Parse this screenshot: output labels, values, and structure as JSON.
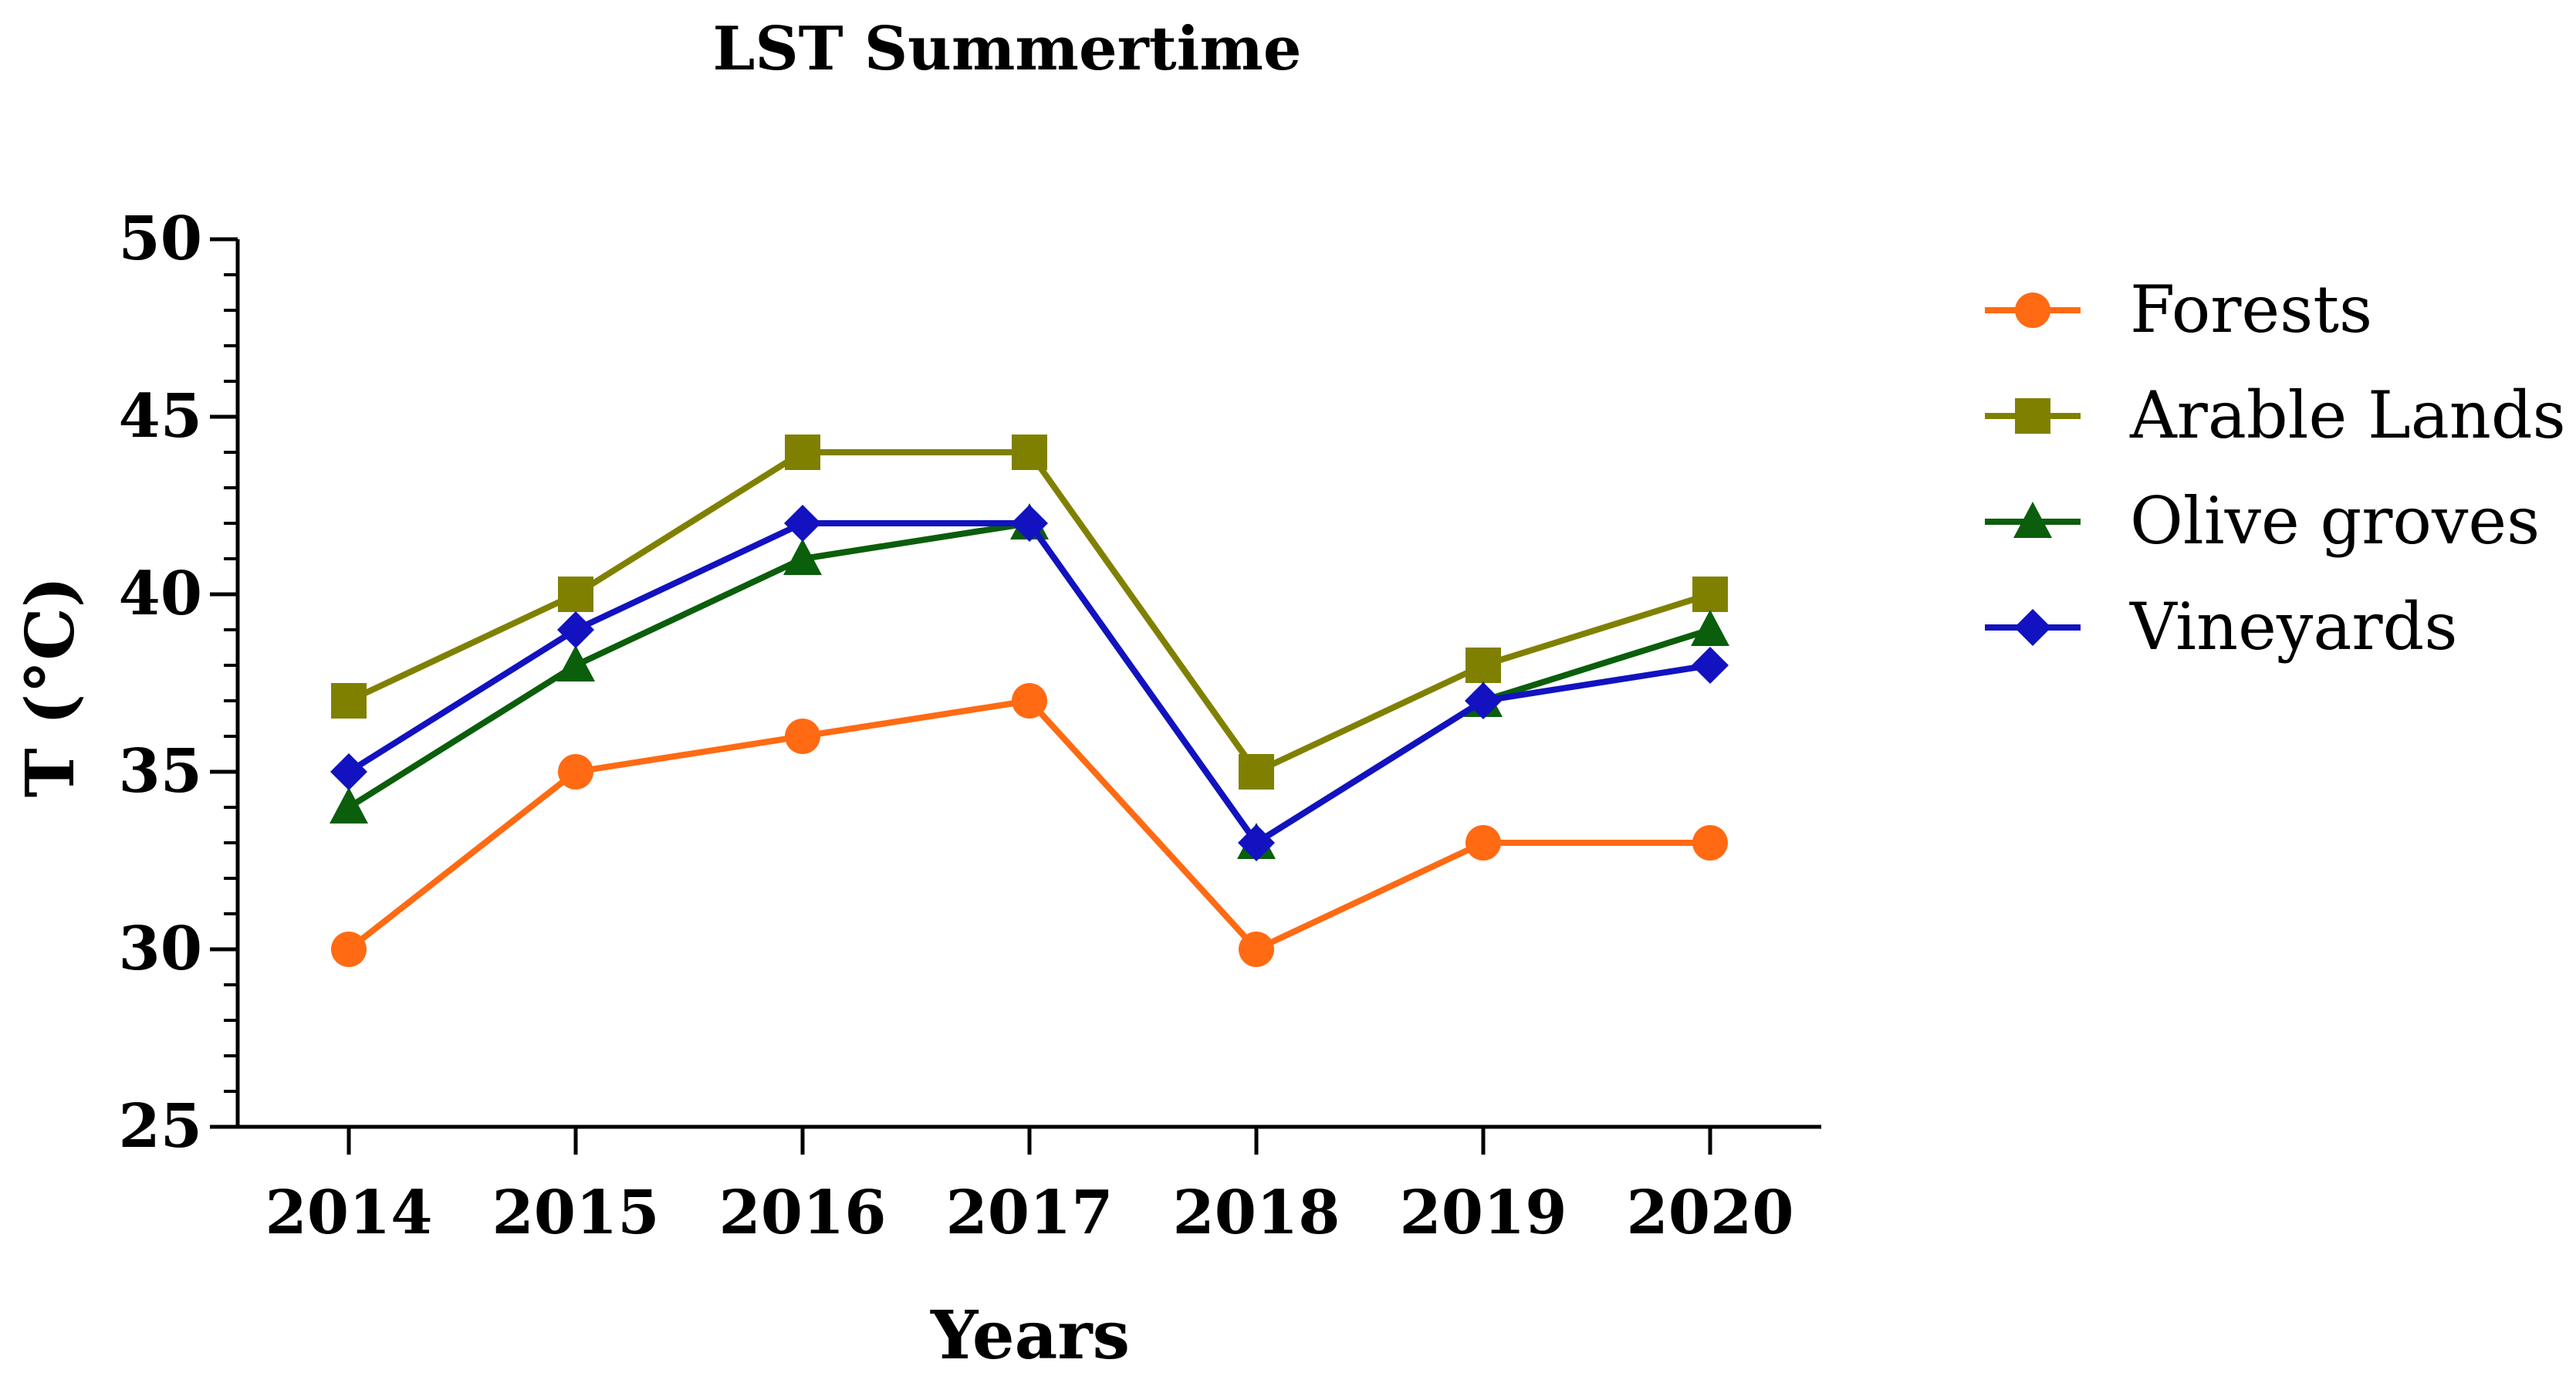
{
  "chart_data": {
    "type": "line",
    "title": "LST Summertime",
    "xlabel": "Years",
    "ylabel": "T (°C)",
    "categories": [
      "2014",
      "2015",
      "2016",
      "2017",
      "2018",
      "2019",
      "2020"
    ],
    "ylim": [
      25,
      50
    ],
    "yticks": [
      25,
      30,
      35,
      40,
      45,
      50
    ],
    "minor_step": 1,
    "legend_position": "right",
    "series": [
      {
        "name": "Forests",
        "color": "#ff6a13",
        "marker": "circle",
        "values": [
          30,
          35,
          36,
          37,
          30,
          33,
          33
        ]
      },
      {
        "name": "Arable Lands",
        "color": "#808000",
        "marker": "square",
        "values": [
          37,
          40,
          44,
          44,
          35,
          38,
          40
        ]
      },
      {
        "name": "Olive groves",
        "color": "#0b5e0b",
        "marker": "triangle",
        "values": [
          34,
          38,
          41,
          42,
          33,
          37,
          39
        ]
      },
      {
        "name": "Vineyards",
        "color": "#1212c0",
        "marker": "diamond",
        "values": [
          35,
          39,
          42,
          42,
          33,
          37,
          38
        ]
      }
    ]
  }
}
